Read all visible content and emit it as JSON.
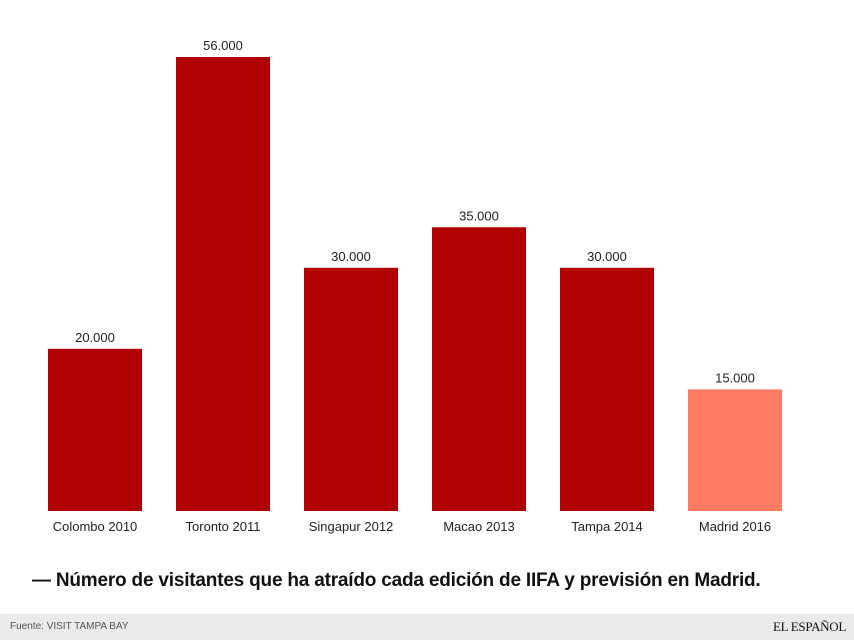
{
  "chart_data": {
    "type": "bar",
    "categories": [
      "Colombo 2010",
      "Toronto 2011",
      "Singapur 2012",
      "Macao 2013",
      "Tampa 2014",
      "Madrid 2016"
    ],
    "values": [
      20000,
      56000,
      30000,
      35000,
      30000,
      15000
    ],
    "value_labels": [
      "20.000",
      "56.000",
      "30.000",
      "35.000",
      "30.000",
      "15.000"
    ],
    "bar_colors": [
      "#b10000",
      "#b10000",
      "#b10000",
      "#b10000",
      "#b10000",
      "#ff7a63"
    ],
    "ylim": [
      0,
      56000
    ],
    "grid": false,
    "legend": "none",
    "title": "— Número de visitantes que ha atraído cada edición de IIFA y previsión en Madrid.",
    "xlabel": "",
    "ylabel": ""
  },
  "footer": {
    "source": "Fuente: VISIT TAMPA BAY",
    "logo_text": "EL ESPAÑOL"
  }
}
